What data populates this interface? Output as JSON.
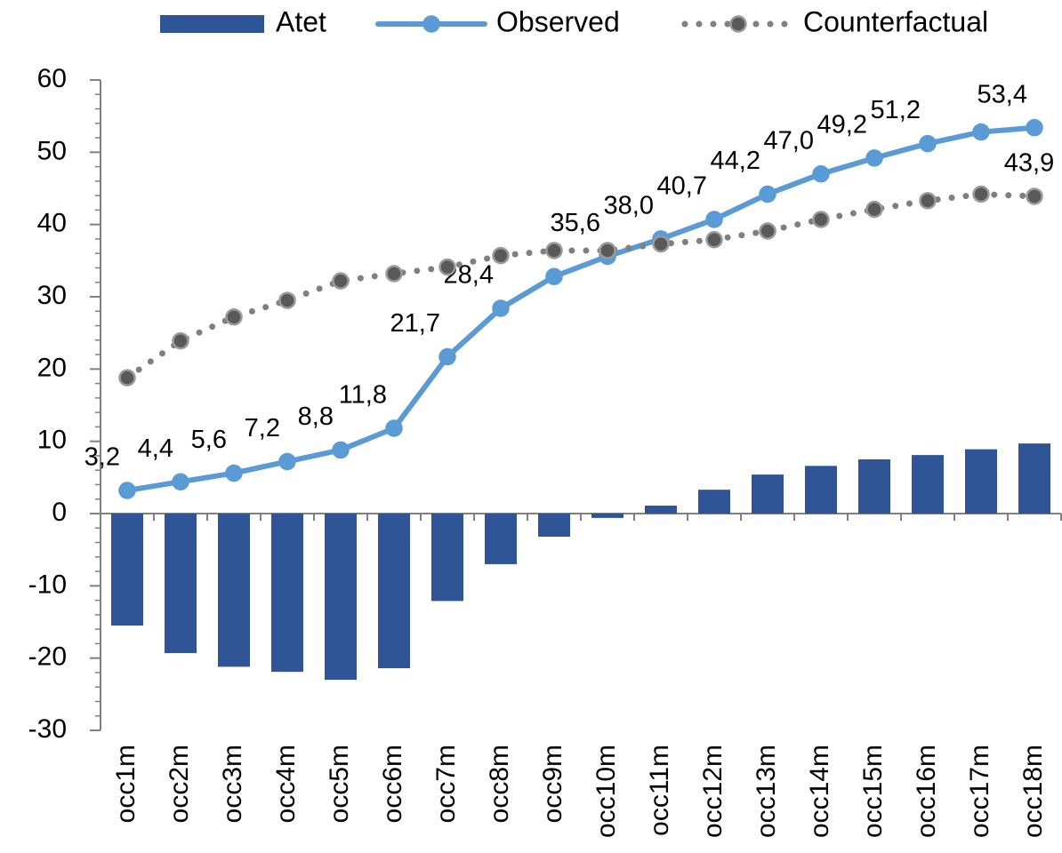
{
  "chart_data": {
    "type": "bar",
    "categories": [
      "occ1m",
      "occ2m",
      "occ3m",
      "occ4m",
      "occ5m",
      "occ6m",
      "occ7m",
      "occ8m",
      "occ9m",
      "occ10m",
      "occ11m",
      "occ12m",
      "occ13m",
      "occ14m",
      "occ15m",
      "occ16m",
      "occ17m",
      "occ18m"
    ],
    "series": [
      {
        "name": "Atet",
        "type": "bar",
        "color": "#2f5597",
        "values": [
          -15.5,
          -19.3,
          -21.2,
          -21.9,
          -23.0,
          -21.4,
          -12.1,
          -7.0,
          -3.2,
          -0.6,
          1.1,
          3.3,
          5.4,
          6.6,
          7.5,
          8.1,
          8.9,
          9.7
        ]
      },
      {
        "name": "Observed",
        "type": "line",
        "color": "#5b9bd5",
        "style": "solid",
        "values": [
          3.2,
          4.4,
          5.6,
          7.2,
          8.8,
          11.8,
          21.7,
          28.4,
          32.8,
          35.6,
          38.0,
          40.7,
          44.2,
          47.0,
          49.2,
          51.2,
          52.8,
          53.4
        ],
        "value_labels": [
          "3,2",
          "4,4",
          "5,6",
          "7,2",
          "8,8",
          "11,8",
          "21,7",
          "28,4",
          null,
          "35,6",
          "38,0",
          "40,7",
          "44,2",
          "47,0",
          "49,2",
          "51,2",
          null,
          "53,4"
        ]
      },
      {
        "name": "Counterfactual",
        "type": "line",
        "color": "#7f7f7f",
        "style": "dotted",
        "values": [
          18.8,
          23.9,
          27.2,
          29.5,
          32.2,
          33.2,
          34.1,
          35.7,
          36.4,
          36.4,
          37.3,
          37.9,
          39.1,
          40.7,
          42.1,
          43.3,
          44.2,
          43.9
        ],
        "value_labels": [
          null,
          null,
          null,
          null,
          null,
          null,
          null,
          null,
          null,
          null,
          null,
          null,
          null,
          null,
          null,
          null,
          null,
          "43,9"
        ]
      }
    ],
    "ylim": [
      -30,
      60
    ],
    "yticks": [
      -30,
      -20,
      -10,
      0,
      10,
      20,
      30,
      40,
      50,
      60
    ],
    "grid": false,
    "legend": "top"
  }
}
